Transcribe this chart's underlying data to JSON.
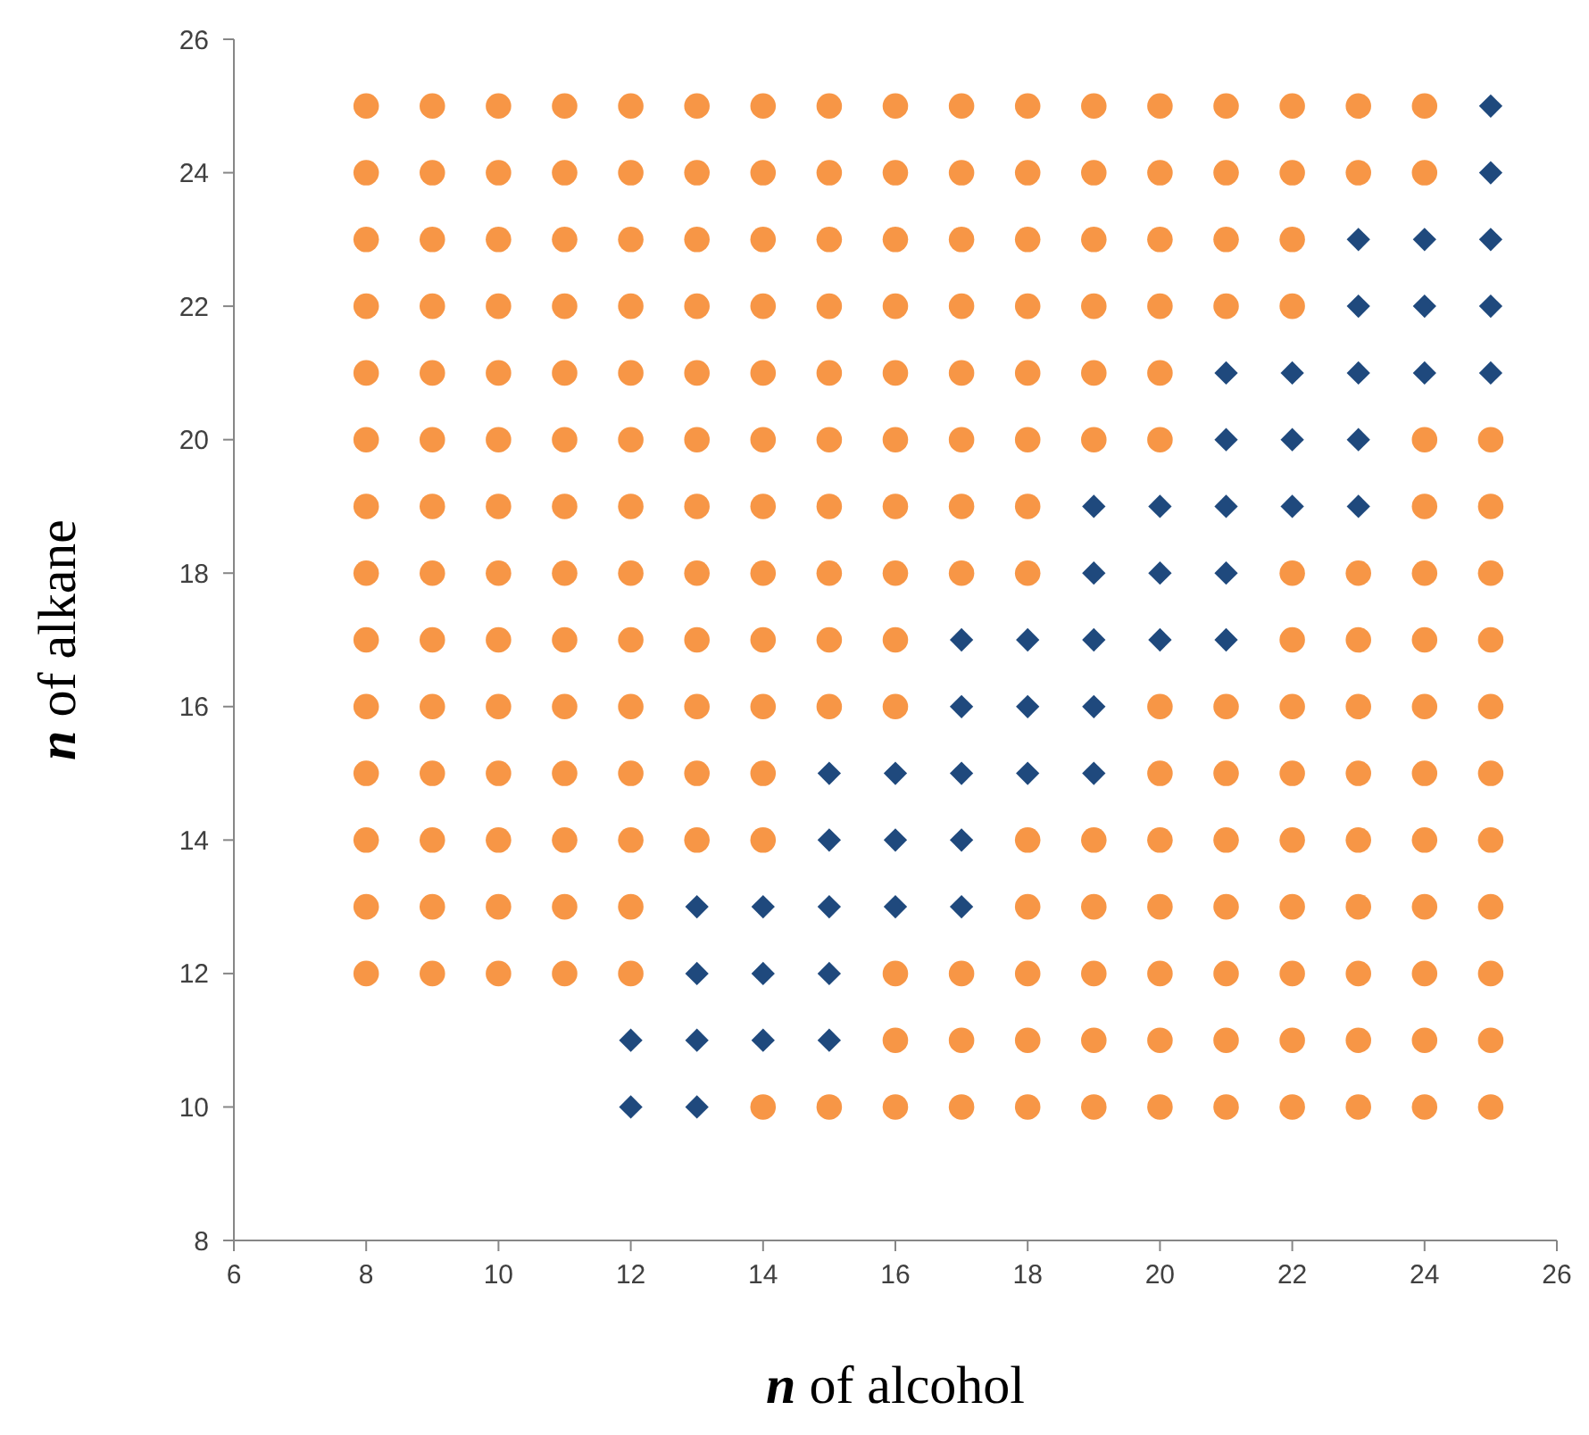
{
  "chart_data": {
    "type": "scatter",
    "xlabel": "n of alcohol",
    "ylabel": "n of alkane",
    "xlim": [
      6,
      26
    ],
    "ylim": [
      8,
      26
    ],
    "xticks": [
      6,
      8,
      10,
      12,
      14,
      16,
      18,
      20,
      22,
      24,
      26
    ],
    "yticks": [
      8,
      10,
      12,
      14,
      16,
      18,
      20,
      22,
      24,
      26
    ],
    "grid": false,
    "series": [
      {
        "color": "#f79646",
        "marker": "circle",
        "x": [
          8,
          9,
          10,
          11,
          12,
          13,
          14,
          15,
          16,
          17,
          18,
          19,
          20,
          21,
          22,
          23,
          24,
          8,
          9,
          10,
          11,
          12,
          13,
          14,
          15,
          16,
          17,
          18,
          19,
          20,
          21,
          22,
          23,
          24,
          8,
          9,
          10,
          11,
          12,
          13,
          14,
          15,
          16,
          17,
          18,
          19,
          20,
          21,
          22,
          8,
          9,
          10,
          11,
          12,
          13,
          14,
          15,
          16,
          17,
          18,
          19,
          20,
          21,
          22,
          8,
          9,
          10,
          11,
          12,
          13,
          14,
          15,
          16,
          17,
          18,
          19,
          20,
          8,
          9,
          10,
          11,
          12,
          13,
          14,
          15,
          16,
          17,
          18,
          19,
          20,
          24,
          25,
          8,
          9,
          10,
          11,
          12,
          13,
          14,
          15,
          16,
          17,
          18,
          24,
          25,
          8,
          9,
          10,
          11,
          12,
          13,
          14,
          15,
          16,
          17,
          18,
          22,
          23,
          24,
          25,
          8,
          9,
          10,
          11,
          12,
          13,
          14,
          15,
          16,
          22,
          23,
          24,
          25,
          8,
          9,
          10,
          11,
          12,
          13,
          14,
          15,
          16,
          20,
          21,
          22,
          23,
          24,
          25,
          8,
          9,
          10,
          11,
          12,
          13,
          14,
          20,
          21,
          22,
          23,
          24,
          25,
          8,
          9,
          10,
          11,
          12,
          13,
          14,
          18,
          19,
          20,
          21,
          22,
          23,
          24,
          25,
          8,
          9,
          10,
          11,
          12,
          18,
          19,
          20,
          21,
          22,
          23,
          24,
          25,
          8,
          9,
          10,
          11,
          12,
          16,
          17,
          18,
          19,
          20,
          21,
          22,
          23,
          24,
          25,
          16,
          17,
          18,
          19,
          20,
          21,
          22,
          23,
          24,
          25,
          14,
          15,
          16,
          17,
          18,
          19,
          20,
          21,
          22,
          23,
          24,
          25
        ],
        "values": [
          25,
          25,
          25,
          25,
          25,
          25,
          25,
          25,
          25,
          25,
          25,
          25,
          25,
          25,
          25,
          25,
          25,
          24,
          24,
          24,
          24,
          24,
          24,
          24,
          24,
          24,
          24,
          24,
          24,
          24,
          24,
          24,
          24,
          24,
          23,
          23,
          23,
          23,
          23,
          23,
          23,
          23,
          23,
          23,
          23,
          23,
          23,
          23,
          23,
          22,
          22,
          22,
          22,
          22,
          22,
          22,
          22,
          22,
          22,
          22,
          22,
          22,
          22,
          22,
          21,
          21,
          21,
          21,
          21,
          21,
          21,
          21,
          21,
          21,
          21,
          21,
          21,
          20,
          20,
          20,
          20,
          20,
          20,
          20,
          20,
          20,
          20,
          20,
          20,
          20,
          20,
          20,
          19,
          19,
          19,
          19,
          19,
          19,
          19,
          19,
          19,
          19,
          19,
          19,
          19,
          18,
          18,
          18,
          18,
          18,
          18,
          18,
          18,
          18,
          18,
          18,
          18,
          18,
          18,
          18,
          17,
          17,
          17,
          17,
          17,
          17,
          17,
          17,
          17,
          17,
          17,
          17,
          17,
          16,
          16,
          16,
          16,
          16,
          16,
          16,
          16,
          16,
          16,
          16,
          16,
          16,
          16,
          16,
          15,
          15,
          15,
          15,
          15,
          15,
          15,
          15,
          15,
          15,
          15,
          15,
          15,
          14,
          14,
          14,
          14,
          14,
          14,
          14,
          14,
          14,
          14,
          14,
          14,
          14,
          14,
          14,
          13,
          13,
          13,
          13,
          13,
          13,
          13,
          13,
          13,
          13,
          13,
          13,
          13,
          12,
          12,
          12,
          12,
          12,
          12,
          12,
          12,
          12,
          12,
          12,
          12,
          12,
          12,
          12,
          11,
          11,
          11,
          11,
          11,
          11,
          11,
          11,
          11,
          11,
          10,
          10,
          10,
          10,
          10,
          10,
          10,
          10,
          10,
          10,
          10,
          10
        ]
      },
      {
        "color": "#1f497d",
        "marker": "diamond",
        "x": [
          25,
          25,
          23,
          24,
          25,
          23,
          24,
          25,
          21,
          22,
          23,
          24,
          25,
          21,
          22,
          23,
          19,
          20,
          21,
          22,
          23,
          19,
          20,
          21,
          17,
          18,
          19,
          20,
          21,
          17,
          18,
          19,
          15,
          16,
          17,
          18,
          19,
          15,
          16,
          17,
          13,
          14,
          15,
          16,
          17,
          13,
          14,
          15,
          12,
          13,
          14,
          15,
          12,
          13
        ],
        "values": [
          25,
          24,
          23,
          23,
          23,
          22,
          22,
          22,
          21,
          21,
          21,
          21,
          21,
          20,
          20,
          20,
          19,
          19,
          19,
          19,
          19,
          18,
          18,
          18,
          17,
          17,
          17,
          17,
          17,
          16,
          16,
          16,
          15,
          15,
          15,
          15,
          15,
          14,
          14,
          14,
          13,
          13,
          13,
          13,
          13,
          12,
          12,
          12,
          11,
          11,
          11,
          11,
          10,
          10
        ]
      }
    ]
  }
}
